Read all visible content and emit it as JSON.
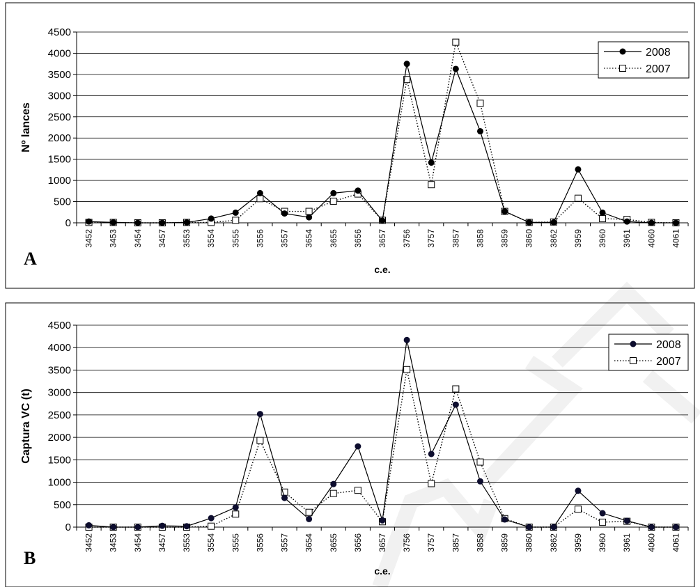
{
  "chart_data": [
    {
      "type": "line",
      "panel_label": "A",
      "title": "",
      "xlabel": "c.e.",
      "ylabel": "Nº lances",
      "ylim": [
        0,
        4500
      ],
      "yticks": [
        0,
        500,
        1000,
        1500,
        2000,
        2500,
        3000,
        3500,
        4000,
        4500
      ],
      "grid": true,
      "legend_position": "top-right",
      "categories": [
        "3452",
        "3453",
        "3454",
        "3457",
        "3553",
        "3554",
        "3555",
        "3556",
        "3557",
        "3654",
        "3655",
        "3656",
        "3657",
        "3756",
        "3757",
        "3857",
        "3858",
        "3859",
        "3860",
        "3862",
        "3959",
        "3960",
        "3961",
        "4060",
        "4061"
      ],
      "series": [
        {
          "name": "2008",
          "line": "solid",
          "marker": "filled-circle",
          "values": [
            30,
            10,
            0,
            0,
            10,
            100,
            240,
            700,
            220,
            130,
            700,
            760,
            50,
            3750,
            1420,
            3630,
            2160,
            270,
            10,
            10,
            1260,
            240,
            30,
            0,
            0
          ]
        },
        {
          "name": "2007",
          "line": "dotted",
          "marker": "open-square",
          "values": [
            10,
            10,
            0,
            0,
            10,
            10,
            60,
            570,
            270,
            270,
            510,
            680,
            60,
            3380,
            900,
            4260,
            2820,
            270,
            10,
            20,
            580,
            100,
            80,
            10,
            0
          ]
        }
      ]
    },
    {
      "type": "line",
      "panel_label": "B",
      "title": "",
      "xlabel": "c.e.",
      "ylabel": "Captura VC (t)",
      "ylim": [
        0,
        4500
      ],
      "yticks": [
        0,
        500,
        1000,
        1500,
        2000,
        2500,
        3000,
        3500,
        4000,
        4500
      ],
      "grid": true,
      "legend_position": "top-right",
      "categories": [
        "3452",
        "3453",
        "3454",
        "3457",
        "3553",
        "3554",
        "3555",
        "3556",
        "3557",
        "3654",
        "3655",
        "3656",
        "3657",
        "3756",
        "3757",
        "3857",
        "3858",
        "3859",
        "3860",
        "3862",
        "3959",
        "3960",
        "3961",
        "4060",
        "4061"
      ],
      "series": [
        {
          "name": "2008",
          "line": "solid",
          "marker": "filled-circle",
          "values": [
            40,
            0,
            0,
            30,
            20,
            200,
            440,
            2520,
            650,
            180,
            960,
            1800,
            150,
            4170,
            1630,
            2730,
            1020,
            170,
            0,
            0,
            810,
            310,
            140,
            0,
            0
          ]
        },
        {
          "name": "2007",
          "line": "dotted",
          "marker": "open-square",
          "values": [
            0,
            0,
            0,
            0,
            0,
            20,
            290,
            1930,
            780,
            330,
            750,
            820,
            120,
            3510,
            970,
            3080,
            1450,
            190,
            0,
            0,
            400,
            110,
            130,
            0,
            0
          ]
        }
      ]
    }
  ],
  "colors": {
    "series_2008_marker": "#000000",
    "series_2008_marker_b": "#0d0d2e",
    "series_2007_marker_fill": "#ffffff",
    "line": "#000000",
    "grid": "#000000",
    "watermark": "#e8e8e8"
  }
}
